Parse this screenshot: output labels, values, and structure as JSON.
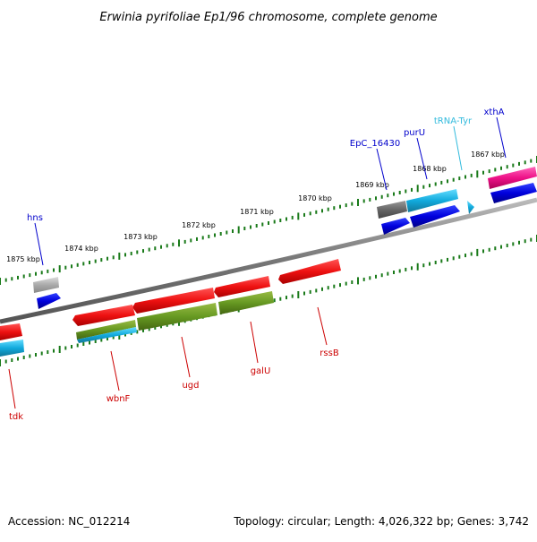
{
  "title": "Erwinia pyrifoliae Ep1/96 chromosome, complete genome",
  "footer": {
    "accession": "Accession: NC_012214",
    "summary": "Topology: circular; Length: 4,026,322 bp; Genes: 3,742"
  },
  "scale_labels": [
    "1867 kbp",
    "1868 kbp",
    "1869 kbp",
    "1870 kbp",
    "1871 kbp",
    "1872 kbp",
    "1873 kbp",
    "1874 kbp",
    "1875 kbp"
  ],
  "gene_labels": [
    "xthA",
    "tRNA-Tyr",
    "purU",
    "EpC_16430",
    "hns",
    "rssB",
    "galU",
    "ugd",
    "wbnF",
    "tdk"
  ],
  "colors": {
    "backbone": "#888888",
    "tick": "#1a7a1a",
    "label_outer": "#0000cc",
    "label_inner": "#cc0000",
    "label_trna": "#33bbdd",
    "gene_red": "#ee1111",
    "gene_blue": "#0000dd",
    "gene_cyan": "#11aadd",
    "gene_olive": "#669922",
    "gene_pink": "#ee1188",
    "gene_gray": "#666666",
    "gene_lightgray": "#aaaaaa"
  }
}
